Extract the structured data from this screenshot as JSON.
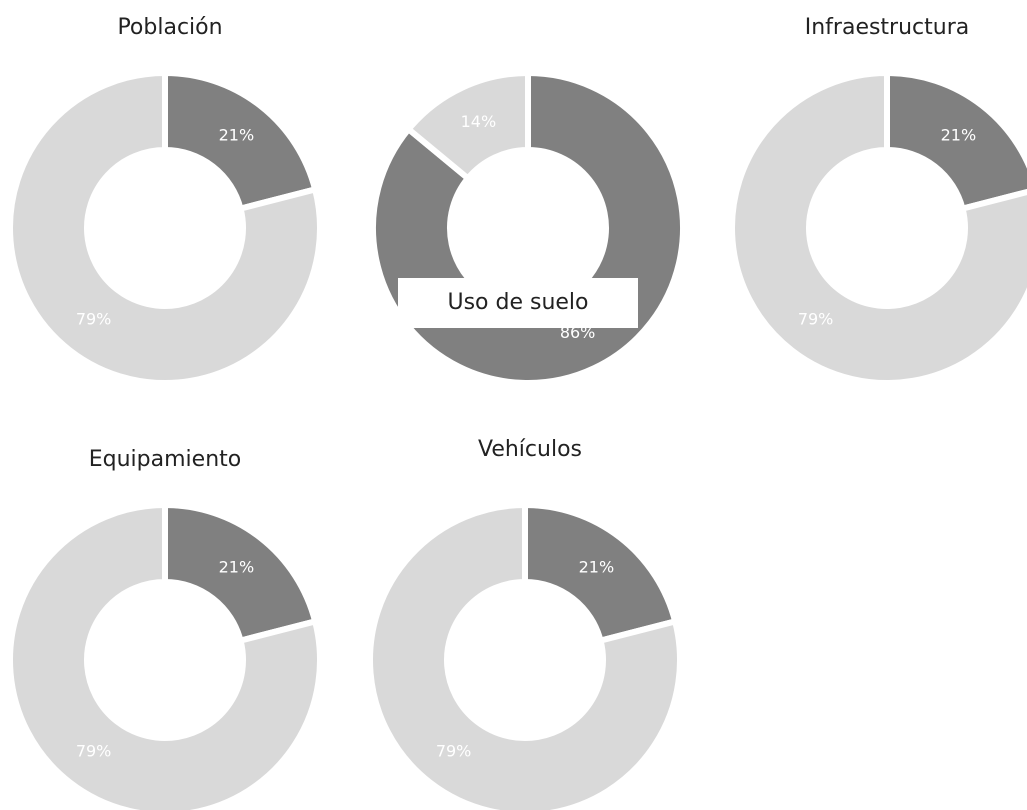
{
  "chart_data": [
    {
      "type": "pie",
      "donut": true,
      "title": "Población",
      "values": [
        21,
        79
      ],
      "value_labels": [
        "21%",
        "79%"
      ],
      "colors": [
        "#808080",
        "#d9d9d9"
      ]
    },
    {
      "type": "pie",
      "donut": true,
      "title": "Uso de suelo",
      "values": [
        86,
        14
      ],
      "value_labels": [
        "86%",
        "14%"
      ],
      "colors": [
        "#808080",
        "#d9d9d9"
      ]
    },
    {
      "type": "pie",
      "donut": true,
      "title": "Infraestructura",
      "values": [
        21,
        79
      ],
      "value_labels": [
        "21%",
        "79%"
      ],
      "colors": [
        "#808080",
        "#d9d9d9"
      ]
    },
    {
      "type": "pie",
      "donut": true,
      "title": "Equipamiento",
      "values": [
        21,
        79
      ],
      "value_labels": [
        "21%",
        "79%"
      ],
      "colors": [
        "#808080",
        "#d9d9d9"
      ]
    },
    {
      "type": "pie",
      "donut": true,
      "title": "Vehículos",
      "values": [
        21,
        79
      ],
      "value_labels": [
        "21%",
        "79%"
      ],
      "colors": [
        "#808080",
        "#d9d9d9"
      ]
    }
  ]
}
